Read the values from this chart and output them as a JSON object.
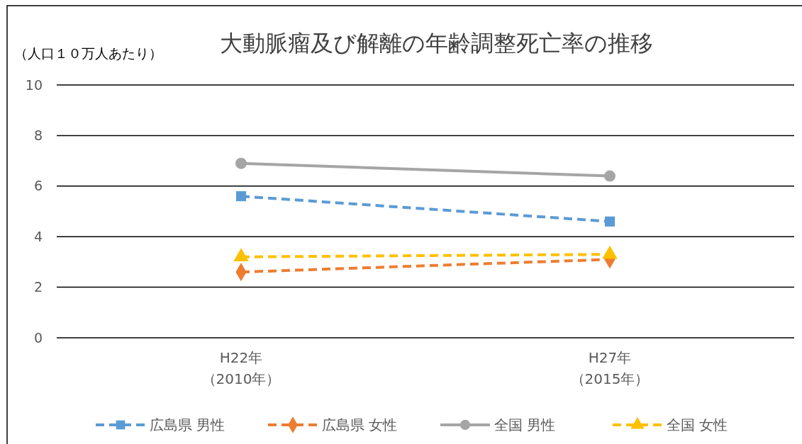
{
  "chart_data": {
    "type": "line",
    "title": "大動脈瘤及び解離の年齢調整死亡率の推移",
    "ylabel": "（人口１０万人あたり）",
    "categories": [
      "H22年（2010年）",
      "H27年（2015年）"
    ],
    "series": [
      {
        "name": "広島県 男性",
        "color": "#5b9bd5",
        "values": [
          5.6,
          4.6
        ],
        "marker": "square",
        "line_style": "dashed"
      },
      {
        "name": "広島県 女性",
        "color": "#ed7d31",
        "values": [
          2.6,
          3.1
        ],
        "marker": "diamond",
        "line_style": "dashed"
      },
      {
        "name": "全国 男性",
        "color": "#a5a5a5",
        "values": [
          6.9,
          6.4
        ],
        "marker": "circle",
        "line_style": "solid"
      },
      {
        "name": "全国 女性",
        "color": "#ffc000",
        "values": [
          3.2,
          3.3
        ],
        "marker": "triangle",
        "line_style": "dashed"
      }
    ],
    "ylim": [
      0,
      10
    ],
    "yticks": [
      0,
      2,
      4,
      6,
      8,
      10
    ],
    "grid": "y",
    "legend": "bottom"
  }
}
